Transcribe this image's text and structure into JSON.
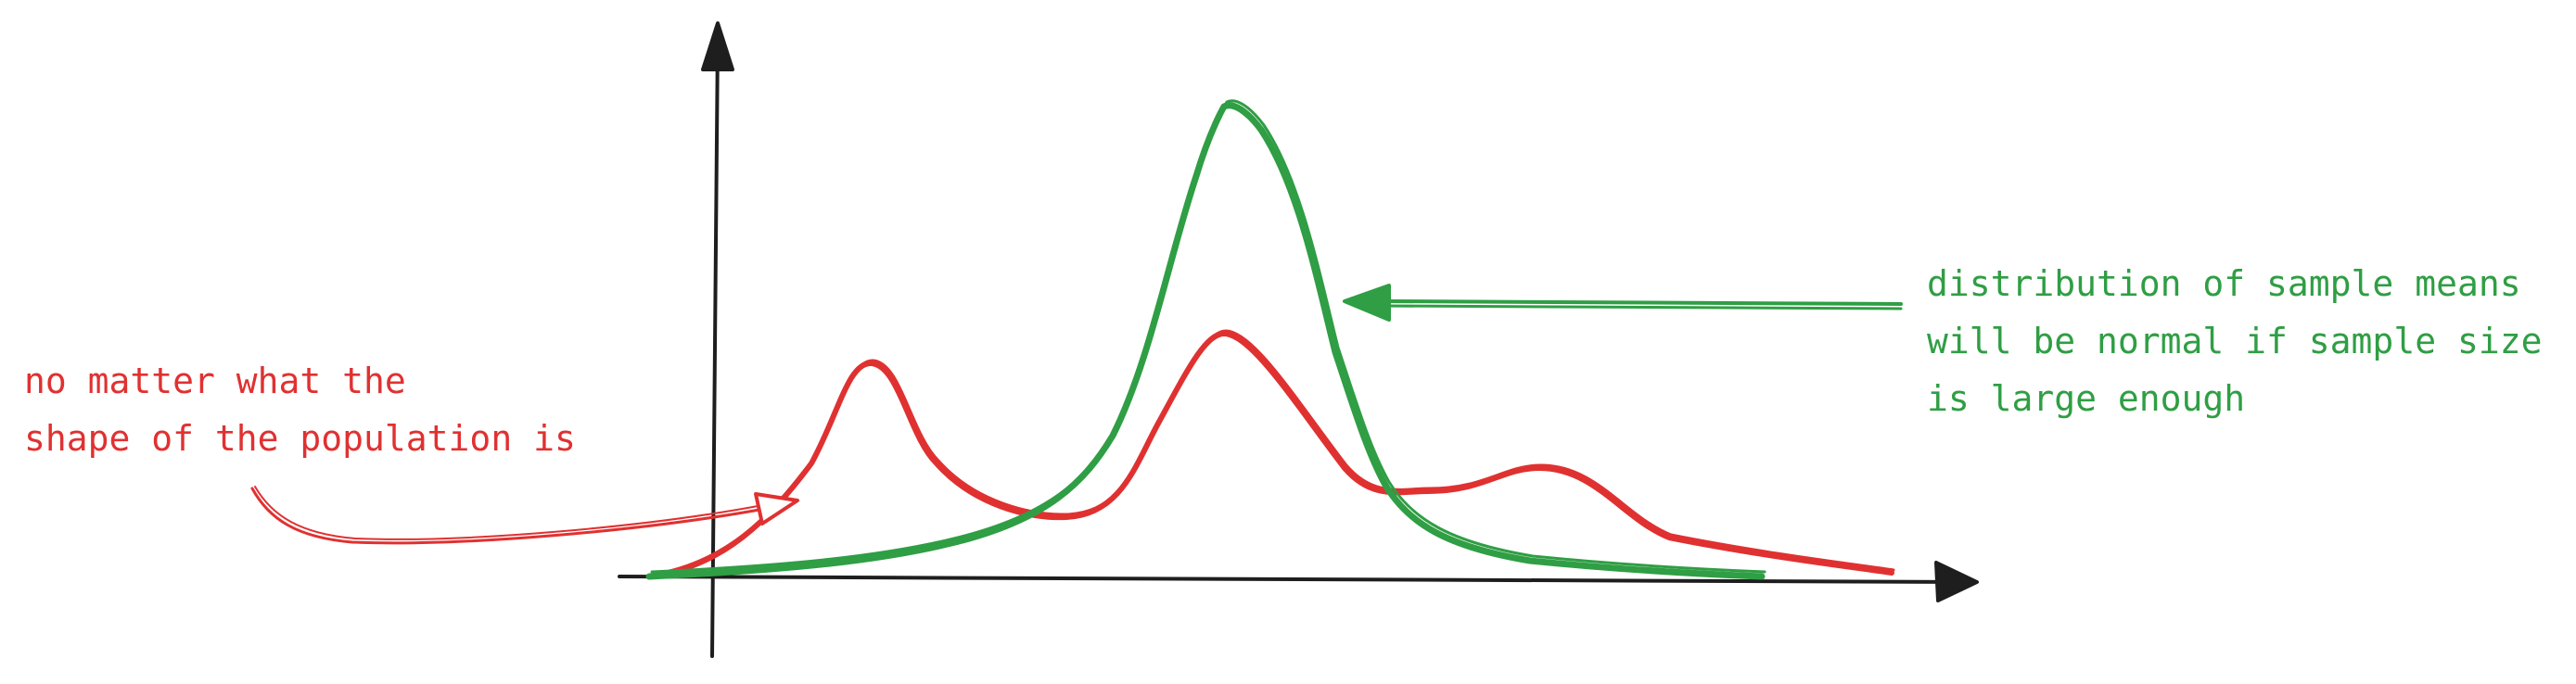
{
  "colors": {
    "axis": "#1e1e1e",
    "population": "#e03131",
    "sampling": "#2f9e44"
  },
  "annotations": {
    "population": {
      "lines": [
        "no matter what the",
        "shape of the population is"
      ]
    },
    "sampling": {
      "lines": [
        "distribution of sample means",
        "will be normal if sample size",
        "is large enough"
      ]
    }
  },
  "curves": {
    "population": {
      "shape": "multimodal",
      "peaks": 3
    },
    "sampling": {
      "shape": "normal",
      "peaks": 1
    }
  }
}
